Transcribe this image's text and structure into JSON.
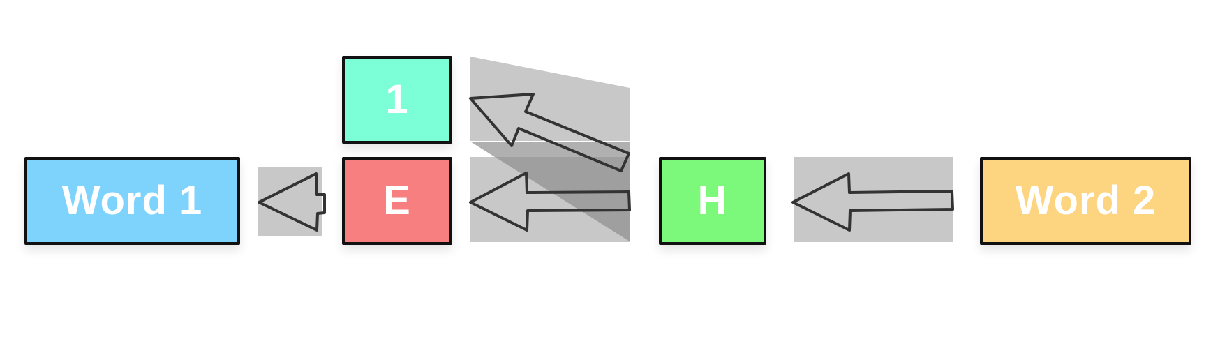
{
  "boxes": {
    "word1": {
      "label": "Word 1",
      "color": "#7dd3fc"
    },
    "e": {
      "label": "E",
      "color": "#f87f7f"
    },
    "one": {
      "label": "1",
      "color": "#7cffd6"
    },
    "h": {
      "label": "H",
      "color": "#7cf97a"
    },
    "word2": {
      "label": "Word 2",
      "color": "#fdd47f"
    }
  },
  "colors": {
    "arrow_stroke": "#333333",
    "panel_fill": "#c8c8c8",
    "panel_dark": "#9f9f9f",
    "border": "#111111"
  }
}
